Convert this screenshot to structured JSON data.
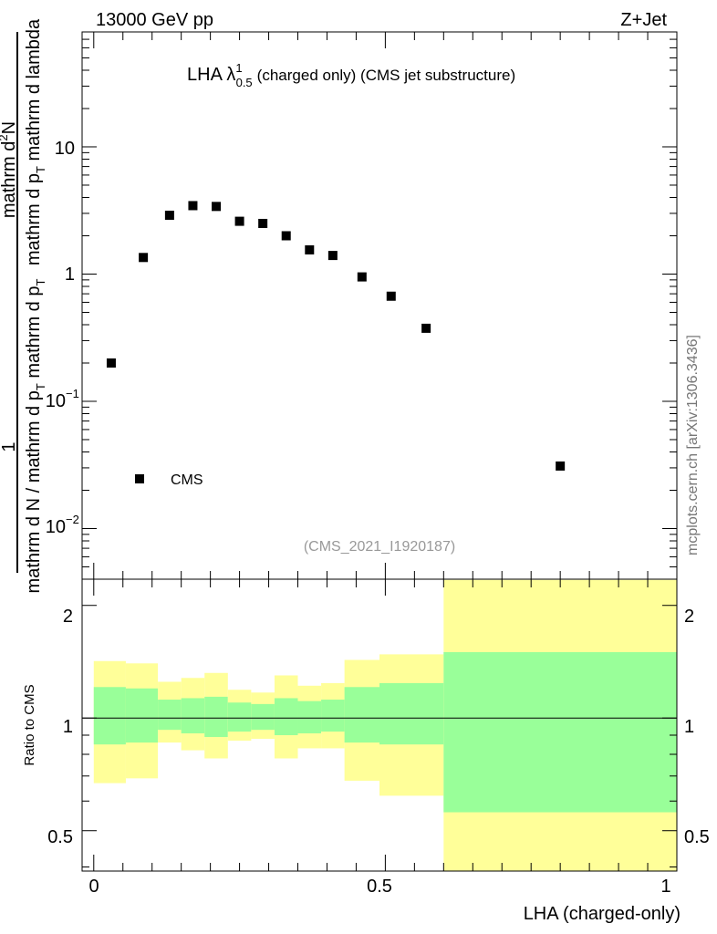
{
  "header": {
    "left": "13000 GeV pp",
    "right": "Z+Jet"
  },
  "side_label": "mcplots.cern.ch [arXiv:1306.3436]",
  "chart_data": [
    {
      "type": "scatter",
      "title_main": "LHA λ",
      "title_sup": "1",
      "title_sub": "0.5",
      "title_rest": "(charged only) (CMS jet substructure)",
      "analysis_id": "(CMS_2021_I1920187)",
      "ylabel_parts": {
        "numerator": "1",
        "denominator": "mathrm d N / mathrm d p",
        "denominator_sub": "T",
        "dN_label": "mathrm d",
        "dN_sup": "2",
        "dN_rest": "N",
        "dpt_label": "mathrm d p",
        "dpt_sub": "T",
        "dpt_rest": " mathrm d p",
        "dpt_rest_sub": "T",
        "dlambda": " mathrm d lambda",
        "dlambda_prefix": "mathrm d p"
      },
      "ylabel_lines": {
        "top_line1": "mathrm d",
        "top_line1_sup": "2",
        "top_line1_rest": "N",
        "top_line2": "mathrm d p",
        "top_line2_sub": "T",
        "top_line2_rest": " mathrm d lambda",
        "bottom_line": "mathrm d N / mathrm d p",
        "bottom_line_sub": "T",
        "bottom_line_rest": " mathrm d p",
        "bottom_line_rest_sub": "T",
        "numerator": "1"
      },
      "yscale": "log",
      "ylim": [
        0.004,
        80
      ],
      "xlim": [
        -0.02,
        1.0
      ],
      "ytick_labels": {
        "t10": "10",
        "t1": "1",
        "t01_base": "10",
        "t01_exp": "−1",
        "t001_base": "10",
        "t001_exp": "−2"
      },
      "legend": {
        "label": "CMS",
        "position": "bottom-left"
      },
      "series": [
        {
          "name": "CMS",
          "x": [
            0.03,
            0.085,
            0.13,
            0.17,
            0.21,
            0.25,
            0.29,
            0.33,
            0.37,
            0.41,
            0.46,
            0.51,
            0.57,
            0.8
          ],
          "y": [
            0.2,
            1.35,
            2.9,
            3.45,
            3.4,
            2.6,
            2.5,
            2.0,
            1.55,
            1.4,
            0.95,
            0.67,
            0.375,
            0.031
          ]
        }
      ]
    },
    {
      "type": "area",
      "ylabel": "Ratio to CMS",
      "xlabel": "LHA (charged-only)",
      "yscale": "log",
      "ylim": [
        0.39,
        2.35
      ],
      "xlim": [
        -0.02,
        1.0
      ],
      "xtick_labels": [
        "0",
        "0.5",
        "1"
      ],
      "ytick_labels": [
        "0.5",
        "1",
        "2"
      ],
      "reference_line": 1,
      "bins": [
        {
          "x0": 0.0,
          "x1": 0.055,
          "green": [
            0.85,
            1.21
          ],
          "yellow": [
            0.67,
            1.42
          ]
        },
        {
          "x0": 0.055,
          "x1": 0.11,
          "green": [
            0.86,
            1.2
          ],
          "yellow": [
            0.69,
            1.4
          ]
        },
        {
          "x0": 0.11,
          "x1": 0.15,
          "green": [
            0.93,
            1.12
          ],
          "yellow": [
            0.86,
            1.25
          ]
        },
        {
          "x0": 0.15,
          "x1": 0.19,
          "green": [
            0.91,
            1.13
          ],
          "yellow": [
            0.82,
            1.28
          ]
        },
        {
          "x0": 0.19,
          "x1": 0.23,
          "green": [
            0.89,
            1.14
          ],
          "yellow": [
            0.78,
            1.32
          ]
        },
        {
          "x0": 0.23,
          "x1": 0.27,
          "green": [
            0.92,
            1.1
          ],
          "yellow": [
            0.87,
            1.19
          ]
        },
        {
          "x0": 0.27,
          "x1": 0.31,
          "green": [
            0.93,
            1.09
          ],
          "yellow": [
            0.88,
            1.17
          ]
        },
        {
          "x0": 0.31,
          "x1": 0.35,
          "green": [
            0.9,
            1.13
          ],
          "yellow": [
            0.78,
            1.3
          ]
        },
        {
          "x0": 0.35,
          "x1": 0.39,
          "green": [
            0.91,
            1.11
          ],
          "yellow": [
            0.83,
            1.22
          ]
        },
        {
          "x0": 0.39,
          "x1": 0.43,
          "green": [
            0.92,
            1.12
          ],
          "yellow": [
            0.83,
            1.24
          ]
        },
        {
          "x0": 0.43,
          "x1": 0.49,
          "green": [
            0.86,
            1.21
          ],
          "yellow": [
            0.68,
            1.43
          ]
        },
        {
          "x0": 0.49,
          "x1": 0.6,
          "green": [
            0.85,
            1.24
          ],
          "yellow": [
            0.62,
            1.48
          ]
        },
        {
          "x0": 0.6,
          "x1": 1.0,
          "green": [
            0.56,
            1.5
          ],
          "yellow": [
            0.38,
            2.34
          ]
        }
      ],
      "colors": {
        "green": "#99ff99",
        "yellow": "#ffff99"
      }
    }
  ]
}
